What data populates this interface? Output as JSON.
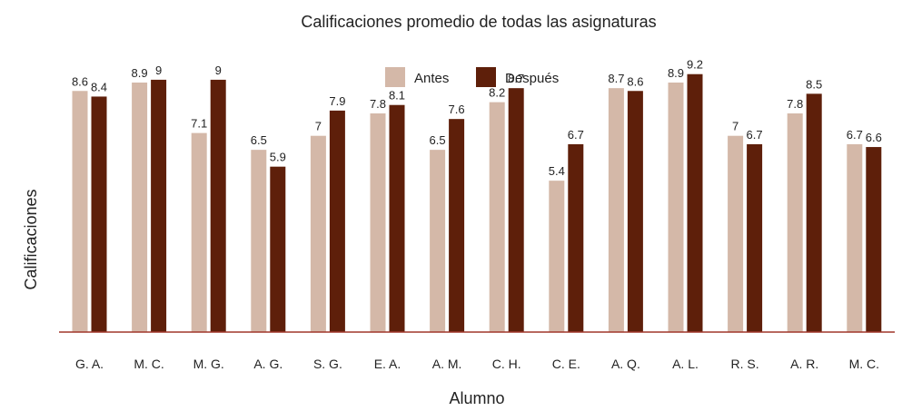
{
  "chart_data": {
    "type": "bar",
    "title": "Calificaciones promedio de todas las asignaturas",
    "xlabel": "Alumno",
    "ylabel": "Calificaciones",
    "categories": [
      "G. A.",
      "M. C.",
      "M. G.",
      "A. G.",
      "S. G.",
      "E. A.",
      "A. M.",
      "C. H.",
      "C. E.",
      "A. Q.",
      "A. L.",
      "R. S.",
      "A. R.",
      "M. C."
    ],
    "series": [
      {
        "name": "Antes",
        "color": "#d4b8a8",
        "values": [
          8.6,
          8.9,
          7.1,
          6.5,
          7,
          7.8,
          6.5,
          8.2,
          5.4,
          8.7,
          8.9,
          7,
          7.8,
          6.7
        ]
      },
      {
        "name": "Después",
        "color": "#5e1f0a",
        "values": [
          8.4,
          9,
          9,
          5.9,
          7.9,
          8.1,
          7.6,
          8.7,
          6.7,
          8.6,
          9.2,
          6.7,
          8.5,
          6.6
        ]
      }
    ],
    "ylim": [
      0,
      10
    ],
    "grid": false,
    "legend_position": "top-center",
    "axis_color": "#a0372a"
  }
}
